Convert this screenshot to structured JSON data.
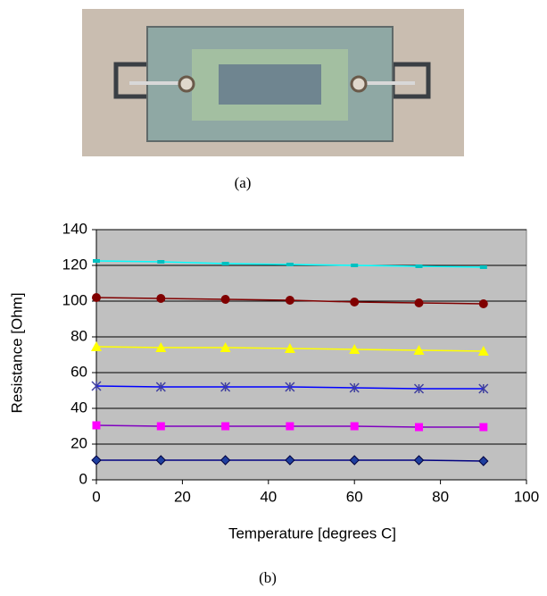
{
  "captions": [
    "(a)",
    "(b)"
  ],
  "chart_data": {
    "type": "line",
    "x_label": "Temperature [degrees C]",
    "y_label": "Resistance [Ohm]",
    "x": [
      0,
      15,
      30,
      45,
      60,
      75,
      90
    ],
    "xlim": [
      0,
      100
    ],
    "xticks": [
      0,
      20,
      40,
      60,
      80,
      100
    ],
    "ylim": [
      0,
      140
    ],
    "yticks": [
      0,
      20,
      40,
      60,
      80,
      100,
      120,
      140
    ],
    "grid": true,
    "plot_background": "#c0c0c0",
    "series": [
      {
        "color": "#000080",
        "marker": "diamond",
        "marker_color": "#1f3f9f",
        "values": [
          11,
          11,
          11,
          11,
          11,
          11,
          10.5
        ]
      },
      {
        "color": "#8000c0",
        "marker": "square",
        "marker_color": "#ff00ff",
        "values": [
          30.5,
          30,
          30,
          30,
          30,
          29.5,
          29.5
        ]
      },
      {
        "color": "#0000ff",
        "marker": "star",
        "marker_color": "#3f3f9f",
        "values": [
          52.5,
          52,
          52,
          52,
          51.5,
          51,
          51
        ]
      },
      {
        "color": "#ffff00",
        "marker": "triangle",
        "marker_color": "#ffff00",
        "values": [
          74.5,
          74,
          74,
          73.5,
          73,
          72.5,
          72
        ]
      },
      {
        "color": "#800000",
        "marker": "circle",
        "marker_color": "#800000",
        "values": [
          102,
          101.5,
          101,
          100.5,
          99.5,
          99,
          98.5
        ]
      },
      {
        "color": "#00ffff",
        "marker": "dash",
        "marker_color": "#00c0c0",
        "values": [
          122.5,
          122,
          121,
          120.5,
          120,
          119.5,
          119
        ]
      }
    ]
  }
}
